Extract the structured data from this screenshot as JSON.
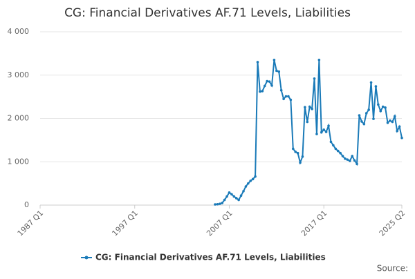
{
  "chart_data": {
    "type": "line",
    "title": "CG: Financial Derivatives AF.71 Levels, Liabilities",
    "categories": [
      "1987 Q1",
      null,
      null,
      null,
      null,
      null,
      null,
      null,
      null,
      null,
      null,
      null,
      null,
      null,
      null,
      null,
      null,
      null,
      null,
      null,
      null,
      null,
      null,
      null,
      null,
      null,
      null,
      null,
      null,
      null,
      null,
      null,
      null,
      null,
      null,
      null,
      null,
      null,
      null,
      null,
      "1997 Q1",
      null,
      null,
      null,
      null,
      null,
      null,
      null,
      null,
      null,
      null,
      null,
      null,
      null,
      null,
      null,
      null,
      null,
      null,
      null,
      null,
      null,
      null,
      null,
      null,
      null,
      null,
      null,
      null,
      null,
      null,
      null,
      null,
      null,
      null,
      null,
      null,
      null,
      null,
      null,
      "2007 Q1",
      null,
      null,
      null,
      null,
      null,
      null,
      null,
      null,
      null,
      null,
      null,
      null,
      null,
      null,
      null,
      null,
      null,
      null,
      null,
      null,
      null,
      null,
      null,
      null,
      null,
      null,
      null,
      null,
      null,
      null,
      null,
      null,
      null,
      null,
      null,
      null,
      null,
      null,
      null,
      "2017 Q1",
      null,
      null,
      null,
      null,
      null,
      null,
      null,
      null,
      null,
      null,
      null,
      null,
      null,
      null,
      null,
      null,
      null,
      null,
      null,
      null,
      null,
      null,
      null,
      null,
      null,
      null,
      null,
      null,
      null,
      null,
      null,
      null,
      "2025 Q2"
    ],
    "series": [
      {
        "name": "CG: Financial Derivatives AF.71 Levels, Liabilities",
        "color": "#1a7ab8",
        "values": [
          null,
          null,
          null,
          null,
          null,
          null,
          null,
          null,
          null,
          null,
          null,
          null,
          null,
          null,
          null,
          null,
          null,
          null,
          null,
          null,
          null,
          null,
          null,
          null,
          null,
          null,
          null,
          null,
          null,
          null,
          null,
          null,
          null,
          null,
          null,
          null,
          null,
          null,
          null,
          null,
          null,
          null,
          null,
          null,
          null,
          null,
          null,
          null,
          null,
          null,
          null,
          null,
          null,
          null,
          null,
          null,
          null,
          null,
          null,
          null,
          null,
          null,
          null,
          null,
          null,
          null,
          null,
          null,
          null,
          null,
          null,
          null,
          null,
          null,
          15,
          20,
          30,
          50,
          120,
          200,
          290,
          250,
          200,
          160,
          120,
          220,
          320,
          430,
          500,
          560,
          600,
          660,
          3300,
          2620,
          2630,
          2750,
          2860,
          2850,
          2760,
          3350,
          3100,
          3080,
          2650,
          2450,
          2510,
          2510,
          2430,
          1300,
          1230,
          1200,
          980,
          1120,
          2260,
          1920,
          2270,
          2220,
          2920,
          1640,
          3350,
          1680,
          1740,
          1690,
          1830,
          1460,
          1380,
          1300,
          1250,
          1200,
          1130,
          1070,
          1050,
          1020,
          1130,
          1030,
          950,
          2070,
          1930,
          1870,
          2120,
          2200,
          2830,
          1990,
          2740,
          2320,
          2170,
          2270,
          2250,
          1900,
          1950,
          1920,
          2050,
          1710,
          1810,
          1550
        ]
      }
    ],
    "ylim": [
      0,
      4000
    ],
    "yticks": [
      0,
      {
        "value": 1000,
        "label": "1 000"
      },
      {
        "value": 2000,
        "label": "2 000"
      },
      {
        "value": 3000,
        "label": "3 000"
      },
      {
        "value": 4000,
        "label": "4 000"
      }
    ],
    "grid": true,
    "legend": "bottom",
    "source": "Source:"
  }
}
